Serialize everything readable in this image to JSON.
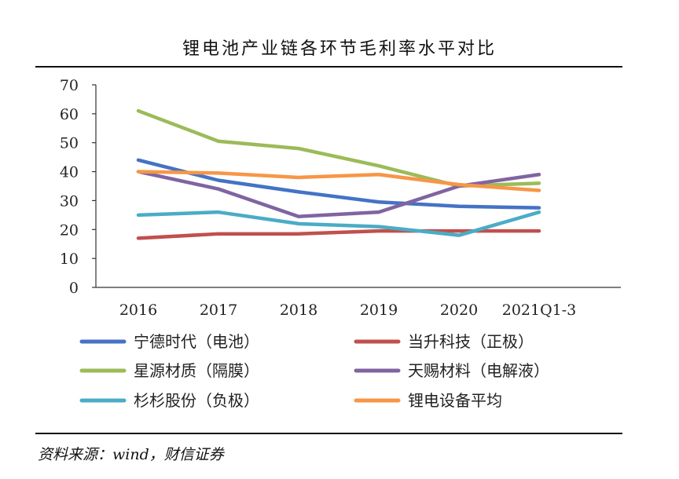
{
  "title": "锂电池产业链各环节毛利率水平对比",
  "source": "资料来源：wind，财信证券",
  "chart_data": {
    "type": "line",
    "title": "锂电池产业链各环节毛利率水平对比",
    "categories": [
      "2016",
      "2017",
      "2018",
      "2019",
      "2020",
      "2021Q1-3"
    ],
    "ylim": [
      0,
      70
    ],
    "yticks": [
      0,
      10,
      20,
      30,
      40,
      50,
      60,
      70
    ],
    "xlabel": "",
    "ylabel": "",
    "grid": false,
    "legend": "bottom",
    "series": [
      {
        "name": "宁德时代（电池）",
        "color": "#4472C4",
        "values": [
          44,
          37,
          33,
          29.5,
          28,
          27.5
        ]
      },
      {
        "name": "当升科技（正极）",
        "color": "#C0504D",
        "values": [
          17,
          18.5,
          18.5,
          19.5,
          19.5,
          19.5
        ]
      },
      {
        "name": "星源材质（隔膜）",
        "color": "#9BBB59",
        "values": [
          61,
          50.5,
          48,
          42,
          35,
          36
        ]
      },
      {
        "name": "天赐材料（电解液）",
        "color": "#8064A2",
        "values": [
          40,
          34,
          24.5,
          26,
          35,
          39
        ]
      },
      {
        "name": "杉杉股份（负极）",
        "color": "#4BACC6",
        "values": [
          25,
          26,
          22,
          21,
          18,
          26
        ]
      },
      {
        "name": "锂电设备平均",
        "color": "#F79646",
        "values": [
          40,
          39.5,
          38,
          39,
          35.5,
          33.5
        ]
      }
    ]
  }
}
